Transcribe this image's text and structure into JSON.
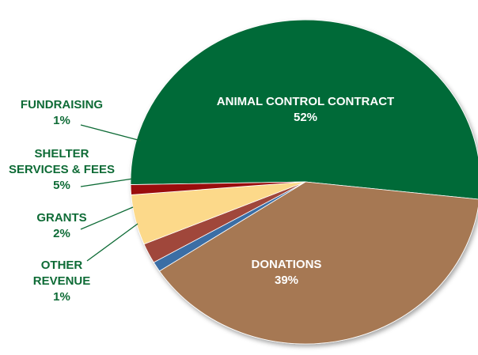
{
  "chart_data": {
    "type": "pie",
    "slices": [
      {
        "key": "animal_control",
        "label": "ANIMAL CONTROL CONTRACT",
        "label_lines": [
          "ANIMAL CONTROL CONTRACT"
        ],
        "pct_text": "52%",
        "value": 52,
        "color": "#046A38"
      },
      {
        "key": "donations",
        "label": "DONATIONS",
        "label_lines": [
          "DONATIONS"
        ],
        "pct_text": "39%",
        "value": 39,
        "color": "#A67852"
      },
      {
        "key": "other_revenue",
        "label": "OTHER REVENUE",
        "label_lines": [
          "OTHER",
          "REVENUE"
        ],
        "pct_text": "1%",
        "value": 1,
        "color": "#3A6EA5"
      },
      {
        "key": "grants",
        "label": "GRANTS",
        "label_lines": [
          "GRANTS"
        ],
        "pct_text": "2%",
        "value": 2,
        "color": "#A0473B"
      },
      {
        "key": "shelter_services",
        "label": "SHELTER SERVICES & FEES",
        "label_lines": [
          "SHELTER",
          "SERVICES & FEES"
        ],
        "pct_text": "5%",
        "value": 5,
        "color": "#FCD98A"
      },
      {
        "key": "fundraising",
        "label": "FUNDRAISING",
        "label_lines": [
          "FUNDRAISING"
        ],
        "pct_text": "1%",
        "value": 1,
        "color": "#9A0E0E"
      }
    ],
    "label_color": "#0E6B36",
    "leader_color": "#0E6B36"
  }
}
